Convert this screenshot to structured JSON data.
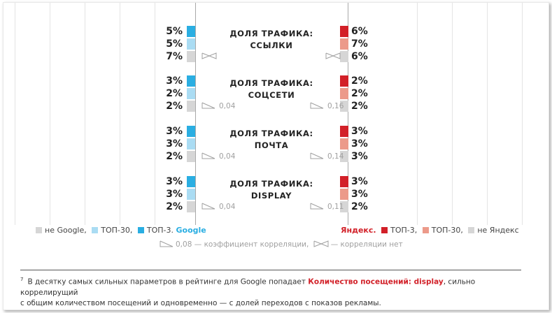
{
  "chart_data": {
    "type": "bar",
    "layout": "butterfly",
    "groups": [
      {
        "title_line1": "ДОЛЯ ТРАФИКА:",
        "title_line2": "ССЫЛКИ",
        "google": {
          "top3": 5,
          "top30": 5,
          "not": 7,
          "corr_label": ""
        },
        "yandex": {
          "top3": 6,
          "top30": 7,
          "not": 6,
          "corr_label": ""
        },
        "google_corr_type": "none",
        "yandex_corr_type": "none"
      },
      {
        "title_line1": "ДОЛЯ ТРАФИКА:",
        "title_line2": "СОЦСЕТИ",
        "google": {
          "top3": 3,
          "top30": 2,
          "not": 2,
          "corr_label": "0,04"
        },
        "yandex": {
          "top3": 2,
          "top30": 2,
          "not": 2,
          "corr_label": "0,16"
        },
        "google_corr_type": "value",
        "yandex_corr_type": "value"
      },
      {
        "title_line1": "ДОЛЯ ТРАФИКА:",
        "title_line2": "ПОЧТА",
        "google": {
          "top3": 3,
          "top30": 3,
          "not": 2,
          "corr_label": "0,04"
        },
        "yandex": {
          "top3": 3,
          "top30": 3,
          "not": 3,
          "corr_label": "0,14"
        },
        "google_corr_type": "value",
        "yandex_corr_type": "value"
      },
      {
        "title_line1": "ДОЛЯ ТРАФИКА:",
        "title_line2": "DISPLAY",
        "google": {
          "top3": 3,
          "top30": 3,
          "not": 2,
          "corr_label": "0,04"
        },
        "yandex": {
          "top3": 3,
          "top30": 3,
          "not": 2,
          "corr_label": "0,11"
        },
        "google_corr_type": "value",
        "yandex_corr_type": "value"
      }
    ],
    "series_google": [
      "не Google",
      "ТОП-30",
      "ТОП-3"
    ],
    "series_yandex": [
      "ТОП-3",
      "ТОП-30",
      "не Яндекс"
    ]
  },
  "colors": {
    "google_top3": "#2aaee2",
    "google_top30": "#aadcf3",
    "google_not": "#d6d6d6",
    "yandex_top3": "#d22028",
    "yandex_top30": "#ec9a8a",
    "yandex_not": "#d6d6d6"
  },
  "legend": {
    "google_not": "не Google,",
    "google_top30": "ТОП-30,",
    "google_top3": "ТОП-3.",
    "google_brand": "Google",
    "yandex_brand": "Яндекс.",
    "yandex_top3": "ТОП-3,",
    "yandex_top30": "ТОП-30,",
    "yandex_not": "не Яндекс"
  },
  "note": {
    "value_example": "0,08",
    "value_text": "— коэффициент корреляции,",
    "none_text": "— корреляции нет"
  },
  "footnote": {
    "marker": "7",
    "before": "В десятку самых сильных параметров в рейтинге для Google попадает ",
    "highlight": "Количество посещений: display",
    "after": ", сильно коррелирущий",
    "line2": "с общим количеством посещений и одновременно — с долей переходов с показов рекламы."
  }
}
